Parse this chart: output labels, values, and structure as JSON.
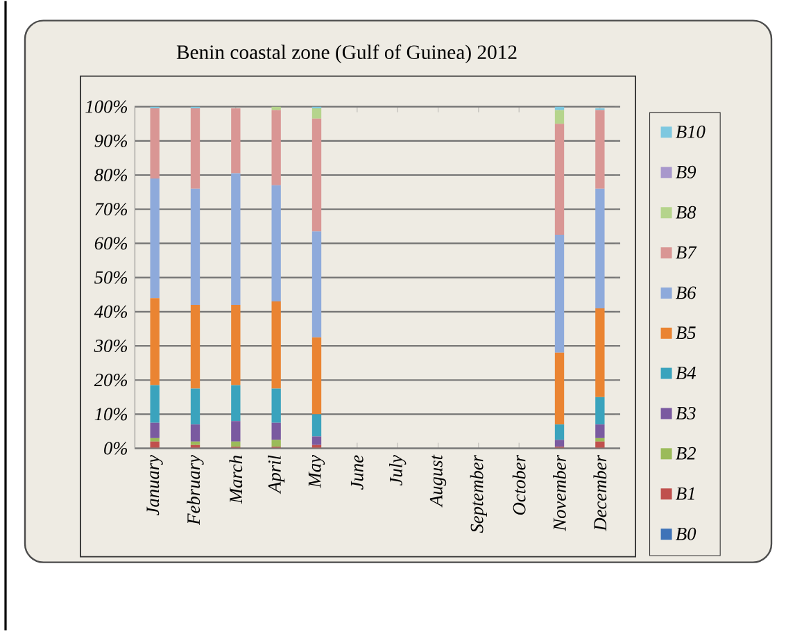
{
  "chart_data": {
    "type": "bar",
    "stacked": true,
    "title": "Benin coastal zone (Gulf of Guinea) 2012",
    "categories": [
      "January",
      "February",
      "March",
      "April",
      "May",
      "June",
      "July",
      "August",
      "September",
      "October",
      "November",
      "December"
    ],
    "ylim": [
      0,
      100
    ],
    "yticks": [
      {
        "value": 0,
        "label": "0%"
      },
      {
        "value": 10,
        "label": "10%"
      },
      {
        "value": 20,
        "label": "20%"
      },
      {
        "value": 30,
        "label": "30%"
      },
      {
        "value": 40,
        "label": "40%"
      },
      {
        "value": 50,
        "label": "50%"
      },
      {
        "value": 60,
        "label": "60%"
      },
      {
        "value": 70,
        "label": "70%"
      },
      {
        "value": 80,
        "label": "80%"
      },
      {
        "value": 90,
        "label": "90%"
      },
      {
        "value": 100,
        "label": "100%"
      }
    ],
    "grid": "y",
    "legend": "right",
    "series": [
      {
        "name": "B0",
        "color": "#3f73b8",
        "values": [
          0,
          0,
          0,
          0,
          0,
          null,
          null,
          null,
          null,
          null,
          0,
          0
        ]
      },
      {
        "name": "B1",
        "color": "#c0504d",
        "values": [
          2,
          1,
          0.5,
          0.5,
          1,
          null,
          null,
          null,
          null,
          null,
          0.5,
          2
        ]
      },
      {
        "name": "B2",
        "color": "#9bbb59",
        "values": [
          1,
          1,
          1.5,
          2,
          0,
          null,
          null,
          null,
          null,
          null,
          0,
          1
        ]
      },
      {
        "name": "B3",
        "color": "#7a5aa0",
        "values": [
          4.5,
          5,
          6,
          5,
          2.5,
          null,
          null,
          null,
          null,
          null,
          2,
          4
        ]
      },
      {
        "name": "B4",
        "color": "#3aa3bd",
        "values": [
          11,
          10.5,
          10.5,
          10,
          6.5,
          null,
          null,
          null,
          null,
          null,
          4.5,
          8
        ]
      },
      {
        "name": "B5",
        "color": "#ea8432",
        "values": [
          25.5,
          24.5,
          23.5,
          25.5,
          22.5,
          null,
          null,
          null,
          null,
          null,
          21,
          26
        ]
      },
      {
        "name": "B6",
        "color": "#8eaadb",
        "values": [
          35,
          34,
          38.5,
          34,
          31,
          null,
          null,
          null,
          null,
          null,
          34.5,
          35
        ]
      },
      {
        "name": "B7",
        "color": "#d99694",
        "values": [
          20.5,
          23.5,
          19,
          22,
          33,
          null,
          null,
          null,
          null,
          null,
          32.5,
          23
        ]
      },
      {
        "name": "B8",
        "color": "#b5d48c",
        "values": [
          0,
          0,
          null,
          1,
          3,
          null,
          null,
          null,
          null,
          null,
          4,
          null
        ]
      },
      {
        "name": "B9",
        "color": "#a898cc",
        "values": [
          0,
          0,
          0,
          0,
          0,
          null,
          null,
          null,
          null,
          null,
          0,
          0
        ]
      },
      {
        "name": "B10",
        "color": "#7ec8e0",
        "values": [
          0.5,
          0.5,
          0,
          0,
          0.5,
          null,
          null,
          null,
          null,
          null,
          1,
          0.5
        ]
      }
    ]
  }
}
